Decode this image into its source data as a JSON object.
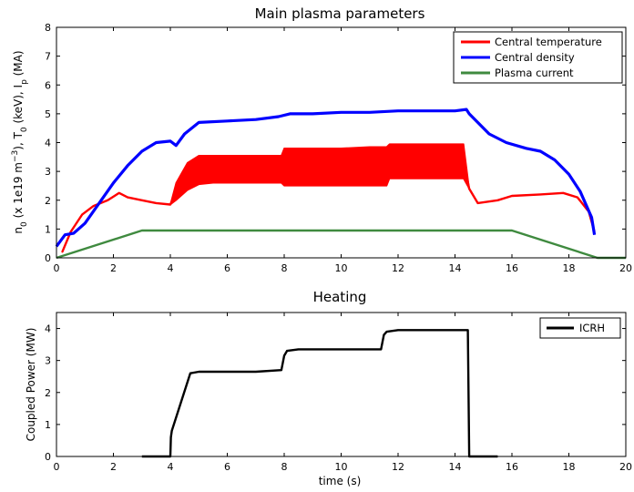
{
  "chart_data": [
    {
      "type": "line",
      "title": "Main plasma parameters",
      "xlabel": "",
      "ylabel": {
        "main": "n",
        "sub1": "0",
        "part2": " (x 1e19 m",
        "sup": "−3",
        "part3": "), T",
        "sub2": "0",
        "part4": " (keV), I",
        "sub3": "p",
        "part5": " (MA)"
      },
      "xlim": [
        0,
        20
      ],
      "ylim": [
        0,
        8
      ],
      "xticks": [
        "0",
        "2",
        "4",
        "6",
        "8",
        "10",
        "12",
        "14",
        "16",
        "18",
        "20"
      ],
      "yticks": [
        "0",
        "1",
        "2",
        "3",
        "4",
        "5",
        "6",
        "7",
        "8"
      ],
      "grid": false,
      "legend_position": "top-right",
      "series": [
        {
          "name": "Central temperature",
          "color": "#ff0000",
          "x": [
            0.2,
            0.5,
            0.9,
            1.3,
            1.8,
            2.2,
            2.5,
            3.0,
            3.5,
            4.0,
            4.2,
            4.6,
            5.0,
            5.5,
            6.0,
            7.0,
            7.9,
            8.0,
            9.0,
            10.0,
            11.0,
            11.6,
            11.7,
            12.5,
            13.5,
            14.3,
            14.5,
            14.8,
            15.5,
            16.0,
            17.0,
            17.8,
            18.3,
            18.7,
            18.9
          ],
          "y": [
            0.2,
            0.9,
            1.5,
            1.8,
            2.0,
            2.25,
            2.1,
            2.0,
            1.9,
            1.85,
            2.3,
            2.7,
            3.0,
            3.05,
            3.0,
            3.0,
            3.0,
            3.2,
            3.2,
            3.2,
            3.2,
            3.2,
            3.35,
            3.35,
            3.35,
            3.35,
            2.4,
            1.9,
            2.0,
            2.15,
            2.2,
            2.25,
            2.1,
            1.6,
            0.9
          ],
          "band_upper": [
            0.2,
            0.9,
            1.5,
            1.8,
            2.0,
            2.25,
            2.1,
            2.0,
            1.9,
            1.85,
            2.6,
            3.3,
            3.55,
            3.55,
            3.55,
            3.55,
            3.55,
            3.8,
            3.8,
            3.8,
            3.85,
            3.85,
            3.95,
            3.95,
            3.95,
            3.95,
            2.4,
            1.9,
            2.0,
            2.15,
            2.2,
            2.25,
            2.1,
            1.6,
            0.9
          ],
          "band_lower": [
            0.2,
            0.9,
            1.5,
            1.8,
            2.0,
            2.25,
            2.1,
            2.0,
            1.9,
            1.85,
            2.0,
            2.35,
            2.55,
            2.6,
            2.6,
            2.6,
            2.6,
            2.5,
            2.5,
            2.5,
            2.5,
            2.5,
            2.75,
            2.75,
            2.75,
            2.75,
            2.4,
            1.9,
            2.0,
            2.15,
            2.2,
            2.25,
            2.1,
            1.6,
            0.9
          ]
        },
        {
          "name": "Central density",
          "color": "#0000ff",
          "x": [
            0.0,
            0.3,
            0.6,
            1.0,
            1.5,
            2.0,
            2.5,
            3.0,
            3.5,
            4.0,
            4.2,
            4.5,
            5.0,
            6.0,
            7.0,
            7.8,
            8.2,
            9.0,
            10.0,
            11.0,
            12.0,
            13.0,
            14.0,
            14.4,
            14.5,
            14.8,
            15.2,
            15.8,
            16.5,
            17.0,
            17.5,
            18.0,
            18.4,
            18.8,
            18.9
          ],
          "y": [
            0.4,
            0.8,
            0.85,
            1.2,
            1.9,
            2.6,
            3.2,
            3.7,
            4.0,
            4.05,
            3.9,
            4.3,
            4.7,
            4.75,
            4.8,
            4.9,
            5.0,
            5.0,
            5.05,
            5.05,
            5.1,
            5.1,
            5.1,
            5.15,
            5.0,
            4.7,
            4.3,
            4.0,
            3.8,
            3.7,
            3.4,
            2.9,
            2.3,
            1.4,
            0.8
          ]
        },
        {
          "name": "Plasma current",
          "color": "#3f8a3f",
          "x": [
            0,
            3,
            16,
            19,
            20
          ],
          "y": [
            0.0,
            0.95,
            0.95,
            0.0,
            0.0
          ]
        }
      ]
    },
    {
      "type": "line",
      "title": "Heating",
      "xlabel": "time (s)",
      "ylabel": "Coupled Power (MW)",
      "xlim": [
        0,
        20
      ],
      "ylim": [
        0,
        4.5
      ],
      "xticks": [
        "0",
        "2",
        "4",
        "6",
        "8",
        "10",
        "12",
        "14",
        "16",
        "18",
        "20"
      ],
      "yticks": [
        "0",
        "1",
        "2",
        "3",
        "4"
      ],
      "grid": false,
      "legend_position": "top-right",
      "series": [
        {
          "name": "ICRH",
          "color": "#000000",
          "x": [
            3.0,
            4.0,
            4.02,
            4.05,
            4.7,
            5.0,
            6.0,
            7.0,
            7.9,
            8.0,
            8.1,
            8.5,
            9.0,
            10.0,
            11.0,
            11.4,
            11.5,
            11.6,
            12.0,
            13.0,
            14.0,
            14.45,
            14.5,
            14.55,
            15.5
          ],
          "y": [
            0.0,
            0.0,
            0.6,
            0.8,
            2.6,
            2.65,
            2.65,
            2.65,
            2.7,
            3.15,
            3.3,
            3.35,
            3.35,
            3.35,
            3.35,
            3.35,
            3.8,
            3.9,
            3.95,
            3.95,
            3.95,
            3.95,
            0.0,
            0.0,
            0.0
          ]
        }
      ]
    }
  ]
}
